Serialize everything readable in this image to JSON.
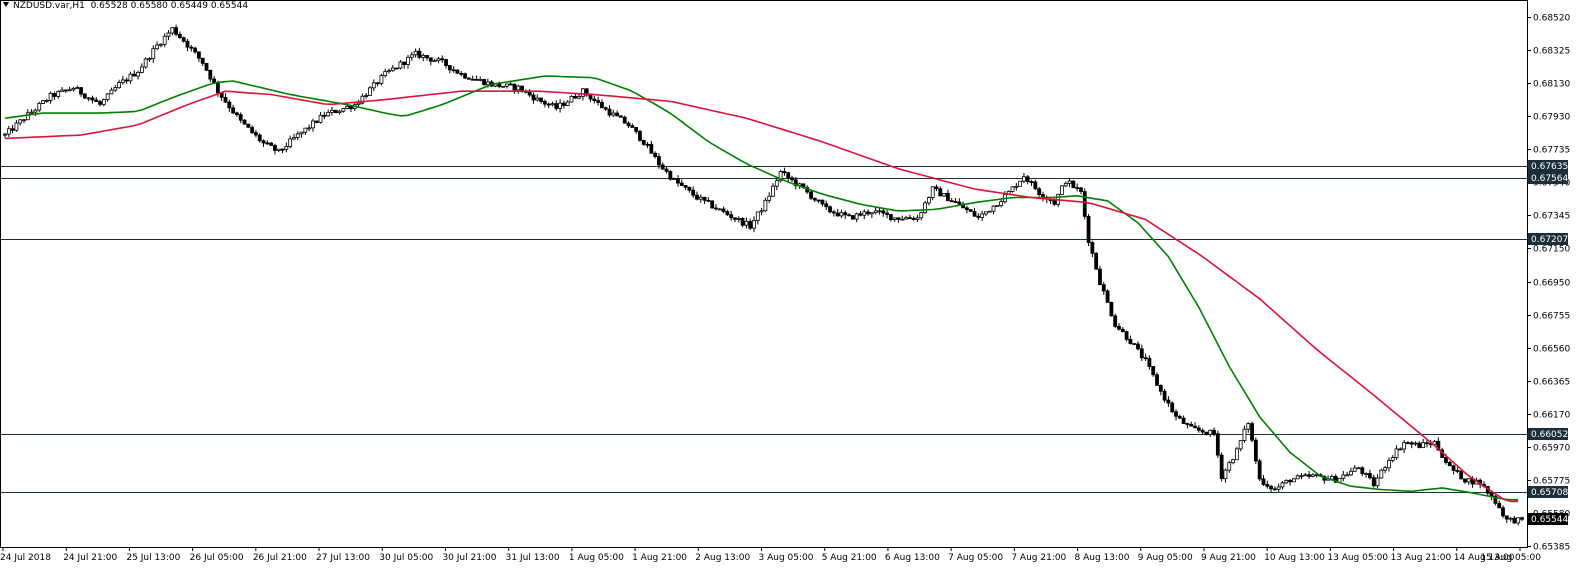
{
  "header": {
    "symbol": "NZDUSD.var,H1",
    "open": "0.65528",
    "high": "0.65580",
    "low": "0.65449",
    "close": "0.65544"
  },
  "colors": {
    "background": "#ffffff",
    "frame": "#000000",
    "candle_up": "#ffffff",
    "candle_down": "#000000",
    "ma_fast": "#008000",
    "ma_slow": "#dc143c",
    "level_line": "#1c2e3a",
    "label_bg": "#1c2e3a",
    "label_text": "#ffffff"
  },
  "chart_data": {
    "type": "candlestick",
    "symbol": "NZDUSD.var",
    "timeframe": "H1",
    "ylim": [
      0.6538,
      0.6862
    ],
    "y_ticks": [
      "0.68520",
      "0.68325",
      "0.68130",
      "0.67930",
      "0.67735",
      "0.67540",
      "0.67345",
      "0.67150",
      "0.66950",
      "0.66755",
      "0.66560",
      "0.66365",
      "0.66170",
      "0.65970",
      "0.65775",
      "0.65580",
      "0.65385"
    ],
    "x_ticks": [
      "24 Jul 2018",
      "24 Jul 21:00",
      "25 Jul 13:00",
      "26 Jul 05:00",
      "26 Jul 21:00",
      "27 Jul 13:00",
      "30 Jul 05:00",
      "30 Jul 21:00",
      "31 Jul 13:00",
      "1 Aug 05:00",
      "1 Aug 21:00",
      "2 Aug 13:00",
      "3 Aug 05:00",
      "5 Aug 21:00",
      "6 Aug 13:00",
      "7 Aug 05:00",
      "7 Aug 21:00",
      "8 Aug 13:00",
      "9 Aug 05:00",
      "9 Aug 21:00",
      "10 Aug 13:00",
      "13 Aug 05:00",
      "13 Aug 21:00",
      "14 Aug 13:00",
      "15 Aug 05:00"
    ],
    "horizontal_levels": [
      {
        "value": 0.67635,
        "label": "0.67635"
      },
      {
        "value": 0.67564,
        "label": "0.67564"
      },
      {
        "value": 0.67207,
        "label": "0.67207"
      },
      {
        "value": 0.66052,
        "label": "0.66052"
      },
      {
        "value": 0.65708,
        "label": "0.65708"
      }
    ],
    "current_price": {
      "value": 0.65544,
      "label": "0.65544"
    },
    "price_path": [
      [
        0,
        0.6782
      ],
      [
        5,
        0.6792
      ],
      [
        12,
        0.6805
      ],
      [
        18,
        0.681
      ],
      [
        25,
        0.68
      ],
      [
        30,
        0.6812
      ],
      [
        35,
        0.682
      ],
      [
        40,
        0.6835
      ],
      [
        44,
        0.6845
      ],
      [
        47,
        0.6838
      ],
      [
        52,
        0.6825
      ],
      [
        56,
        0.6808
      ],
      [
        62,
        0.679
      ],
      [
        68,
        0.6777
      ],
      [
        72,
        0.6772
      ],
      [
        76,
        0.678
      ],
      [
        84,
        0.6794
      ],
      [
        92,
        0.68
      ],
      [
        100,
        0.6818
      ],
      [
        108,
        0.683
      ],
      [
        115,
        0.6825
      ],
      [
        120,
        0.6818
      ],
      [
        128,
        0.6812
      ],
      [
        135,
        0.681
      ],
      [
        140,
        0.6803
      ],
      [
        145,
        0.6798
      ],
      [
        152,
        0.6808
      ],
      [
        158,
        0.6797
      ],
      [
        164,
        0.6788
      ],
      [
        168,
        0.6778
      ],
      [
        172,
        0.6765
      ],
      [
        176,
        0.6755
      ],
      [
        182,
        0.6745
      ],
      [
        190,
        0.6735
      ],
      [
        196,
        0.6728
      ],
      [
        200,
        0.6742
      ],
      [
        204,
        0.676
      ],
      [
        210,
        0.675
      ],
      [
        216,
        0.6738
      ],
      [
        222,
        0.6733
      ],
      [
        228,
        0.6737
      ],
      [
        234,
        0.6733
      ],
      [
        240,
        0.6733
      ],
      [
        244,
        0.675
      ],
      [
        250,
        0.6742
      ],
      [
        256,
        0.6733
      ],
      [
        260,
        0.674
      ],
      [
        264,
        0.6748
      ],
      [
        268,
        0.6758
      ],
      [
        272,
        0.6748
      ],
      [
        276,
        0.6742
      ],
      [
        279,
        0.6755
      ],
      [
        283,
        0.6748
      ],
      [
        285,
        0.672
      ],
      [
        288,
        0.6695
      ],
      [
        292,
        0.667
      ],
      [
        296,
        0.666
      ],
      [
        300,
        0.6648
      ],
      [
        304,
        0.663
      ],
      [
        308,
        0.6615
      ],
      [
        312,
        0.6608
      ],
      [
        318,
        0.6605
      ],
      [
        320,
        0.658
      ],
      [
        324,
        0.6595
      ],
      [
        327,
        0.6612
      ],
      [
        330,
        0.6578
      ],
      [
        334,
        0.6572
      ],
      [
        338,
        0.6578
      ],
      [
        344,
        0.658
      ],
      [
        350,
        0.6578
      ],
      [
        356,
        0.6585
      ],
      [
        360,
        0.6575
      ],
      [
        364,
        0.659
      ],
      [
        368,
        0.66
      ],
      [
        372,
        0.6598
      ],
      [
        376,
        0.66
      ],
      [
        380,
        0.6585
      ],
      [
        384,
        0.6578
      ],
      [
        388,
        0.6576
      ],
      [
        392,
        0.6565
      ],
      [
        395,
        0.6554
      ]
    ],
    "moving_averages": [
      {
        "color": "ma_fast",
        "points": [
          [
            0,
            0.6792
          ],
          [
            10,
            0.6795
          ],
          [
            25,
            0.6795
          ],
          [
            35,
            0.6796
          ],
          [
            45,
            0.6805
          ],
          [
            55,
            0.6813
          ],
          [
            60,
            0.6814
          ],
          [
            75,
            0.6806
          ],
          [
            90,
            0.68
          ],
          [
            100,
            0.6795
          ],
          [
            105,
            0.6793
          ],
          [
            115,
            0.68
          ],
          [
            128,
            0.6812
          ],
          [
            142,
            0.6817
          ],
          [
            155,
            0.6816
          ],
          [
            165,
            0.6808
          ],
          [
            175,
            0.6795
          ],
          [
            185,
            0.6778
          ],
          [
            195,
            0.6765
          ],
          [
            205,
            0.6755
          ],
          [
            215,
            0.6747
          ],
          [
            225,
            0.6741
          ],
          [
            235,
            0.6737
          ],
          [
            245,
            0.6738
          ],
          [
            255,
            0.6742
          ],
          [
            265,
            0.6745
          ],
          [
            275,
            0.6745
          ],
          [
            282,
            0.6746
          ],
          [
            290,
            0.6743
          ],
          [
            298,
            0.673
          ],
          [
            306,
            0.671
          ],
          [
            314,
            0.668
          ],
          [
            322,
            0.6645
          ],
          [
            330,
            0.6615
          ],
          [
            338,
            0.6594
          ],
          [
            346,
            0.658
          ],
          [
            354,
            0.6574
          ],
          [
            362,
            0.6572
          ],
          [
            370,
            0.6571
          ],
          [
            378,
            0.6573
          ],
          [
            386,
            0.657
          ],
          [
            395,
            0.6566
          ]
        ]
      },
      {
        "color": "ma_slow",
        "points": [
          [
            0,
            0.678
          ],
          [
            20,
            0.6782
          ],
          [
            35,
            0.6788
          ],
          [
            48,
            0.68
          ],
          [
            58,
            0.6808
          ],
          [
            70,
            0.6806
          ],
          [
            85,
            0.68
          ],
          [
            100,
            0.6803
          ],
          [
            120,
            0.6808
          ],
          [
            140,
            0.6808
          ],
          [
            155,
            0.6806
          ],
          [
            175,
            0.6802
          ],
          [
            195,
            0.6792
          ],
          [
            215,
            0.6778
          ],
          [
            235,
            0.6762
          ],
          [
            255,
            0.675
          ],
          [
            270,
            0.6745
          ],
          [
            285,
            0.6742
          ],
          [
            300,
            0.6732
          ],
          [
            315,
            0.671
          ],
          [
            330,
            0.6685
          ],
          [
            345,
            0.6655
          ],
          [
            360,
            0.6628
          ],
          [
            375,
            0.66
          ],
          [
            385,
            0.658
          ],
          [
            395,
            0.6565
          ]
        ]
      }
    ],
    "xlabel": "",
    "ylabel": ""
  }
}
